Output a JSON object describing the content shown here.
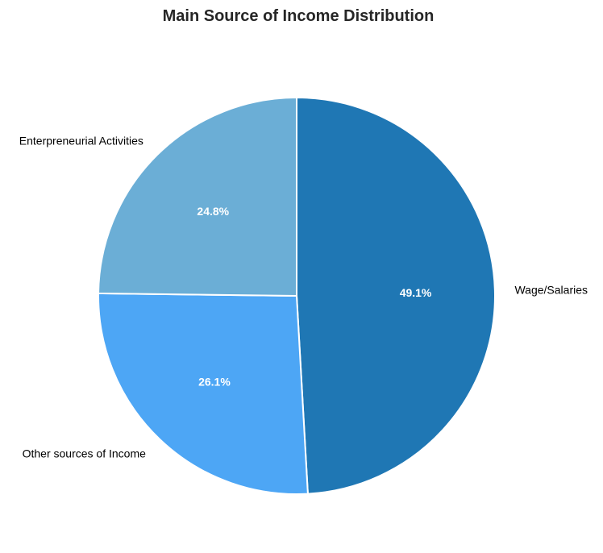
{
  "chart_data": {
    "type": "pie",
    "title": "Main Source of Income Distribution",
    "slices": [
      {
        "label": "Wage/Salaries",
        "value": 49.1,
        "pct_label": "49.1%",
        "color": "#1f77b4"
      },
      {
        "label": "Other sources of Income",
        "value": 26.1,
        "pct_label": "26.1%",
        "color": "#4da6f5"
      },
      {
        "label": "Enterpreneurial Activities",
        "value": 24.8,
        "pct_label": "24.8%",
        "color": "#6baed6"
      }
    ],
    "start_angle": "top",
    "direction": "clockwise",
    "legend": "none"
  }
}
